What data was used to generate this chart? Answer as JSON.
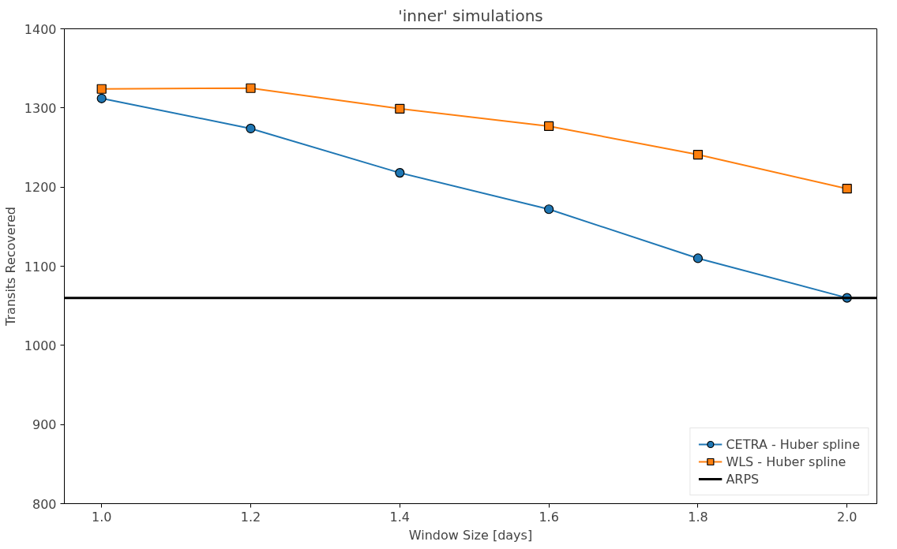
{
  "chart_data": {
    "type": "line",
    "title": "'inner' simulations",
    "xlabel": "Window Size [days]",
    "ylabel": "Transits Recovered",
    "x": [
      1.0,
      1.2,
      1.4,
      1.6,
      1.8,
      2.0
    ],
    "series": [
      {
        "name": "CETRA - Huber spline",
        "color": "#1f77b4",
        "marker": "circle",
        "values": [
          1312,
          1274,
          1218,
          1172,
          1110,
          1060
        ]
      },
      {
        "name": "WLS - Huber spline",
        "color": "#ff7f0e",
        "marker": "square",
        "values": [
          1324,
          1325,
          1299,
          1277,
          1241,
          1198
        ]
      }
    ],
    "ref_lines": [
      {
        "axis": "y",
        "value": 1060,
        "label": "ARPS",
        "color": "#000000"
      }
    ],
    "xlim": [
      0.95,
      2.04
    ],
    "ylim": [
      800,
      1400
    ],
    "xticks": [
      {
        "value": 1.0,
        "label": "1.0"
      },
      {
        "value": 1.2,
        "label": "1.2"
      },
      {
        "value": 1.4,
        "label": "1.4"
      },
      {
        "value": 1.6,
        "label": "1.6"
      },
      {
        "value": 1.8,
        "label": "1.8"
      },
      {
        "value": 2.0,
        "label": "2.0"
      }
    ],
    "yticks": [
      800,
      900,
      1000,
      1100,
      1200,
      1300,
      1400
    ],
    "legend": "bottom right",
    "grid": false
  }
}
